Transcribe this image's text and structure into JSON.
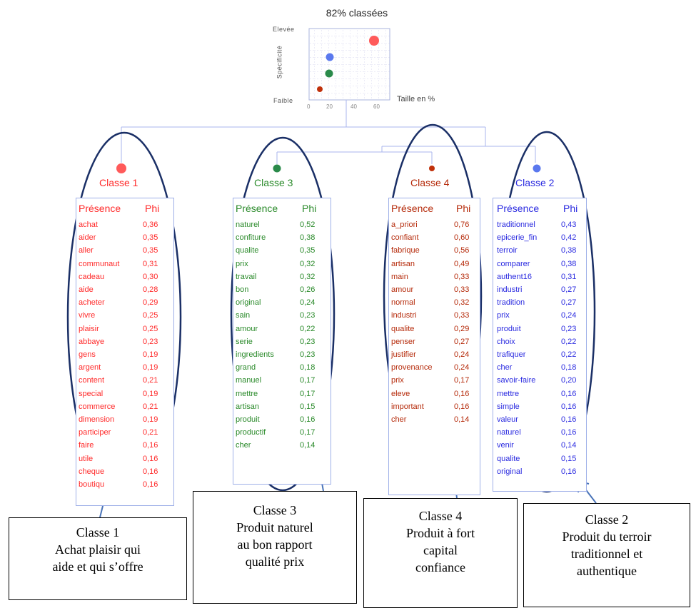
{
  "chart": {
    "title": "82% classées",
    "y_high": "Elevée",
    "y_low": "Faible",
    "y_axis": "Spécificité",
    "x_axis": "Taille en %",
    "x_ticks": [
      "0",
      "20",
      "40",
      "60"
    ]
  },
  "header": {
    "presence": "Présence",
    "phi": "Phi"
  },
  "classes": [
    {
      "title": "Classe 1",
      "color": "#ff2a2a",
      "rows": [
        [
          "achat",
          "0,36"
        ],
        [
          "aider",
          "0,35"
        ],
        [
          "aller",
          "0,35"
        ],
        [
          "communaut",
          "0,31"
        ],
        [
          "cadeau",
          "0,30"
        ],
        [
          "aide",
          "0,28"
        ],
        [
          "acheter",
          "0,29"
        ],
        [
          "vivre",
          "0,25"
        ],
        [
          "plaisir",
          "0,25"
        ],
        [
          "abbaye",
          "0,23"
        ],
        [
          "gens",
          "0,19"
        ],
        [
          "argent",
          "0,19"
        ],
        [
          "content",
          "0,21"
        ],
        [
          "special",
          "0,19"
        ],
        [
          "commerce",
          "0,21"
        ],
        [
          "dimension",
          "0,19"
        ],
        [
          "participer",
          "0,21"
        ],
        [
          "faire",
          "0,16"
        ],
        [
          "utile",
          "0,16"
        ],
        [
          "cheque",
          "0,16"
        ],
        [
          "boutiqu",
          "0,16"
        ]
      ],
      "desc": [
        "Classe 1",
        "Achat plaisir qui",
        "aide et qui s’offre"
      ]
    },
    {
      "title": "Classe 3",
      "color": "#2a8a2a",
      "rows": [
        [
          "naturel",
          "0,52"
        ],
        [
          "confiture",
          "0,38"
        ],
        [
          "qualite",
          "0,35"
        ],
        [
          "prix",
          "0,32"
        ],
        [
          "travail",
          "0,32"
        ],
        [
          "bon",
          "0,26"
        ],
        [
          "original",
          "0,24"
        ],
        [
          "sain",
          "0,23"
        ],
        [
          "amour",
          "0,22"
        ],
        [
          "serie",
          "0,23"
        ],
        [
          "ingredients",
          "0,23"
        ],
        [
          "grand",
          "0,18"
        ],
        [
          "manuel",
          "0,17"
        ],
        [
          "mettre",
          "0,17"
        ],
        [
          "artisan",
          "0,15"
        ],
        [
          "produit",
          "0,16"
        ],
        [
          "productif",
          "0,17"
        ],
        [
          "cher",
          "0,14"
        ]
      ],
      "desc": [
        "Classe 3",
        "Produit naturel",
        "au bon rapport",
        "qualité prix"
      ]
    },
    {
      "title": "Classe 4",
      "color": "#b52a0a",
      "rows": [
        [
          "a_priori",
          "0,76"
        ],
        [
          "confiant",
          "0,60"
        ],
        [
          "fabrique",
          "0,56"
        ],
        [
          "artisan",
          "0,49"
        ],
        [
          "main",
          "0,33"
        ],
        [
          "amour",
          "0,33"
        ],
        [
          "normal",
          "0,32"
        ],
        [
          "industri",
          "0,33"
        ],
        [
          "qualite",
          "0,29"
        ],
        [
          "penser",
          "0,27"
        ],
        [
          "justifier",
          "0,24"
        ],
        [
          "provenance",
          "0,24"
        ],
        [
          "prix",
          "0,17"
        ],
        [
          "eleve",
          "0,16"
        ],
        [
          "important",
          "0,16"
        ],
        [
          "cher",
          "0,14"
        ]
      ],
      "desc": [
        "Classe 4",
        "Produit à fort",
        "capital",
        "confiance"
      ]
    },
    {
      "title": "Classe 2",
      "color": "#2a2ae0",
      "rows": [
        [
          "traditionnel",
          "0,43"
        ],
        [
          "epicerie_fin",
          "0,42"
        ],
        [
          "terroir",
          "0,38"
        ],
        [
          "comparer",
          "0,38"
        ],
        [
          "authent16",
          "0,31"
        ],
        [
          "industri",
          "0,27"
        ],
        [
          "tradition",
          "0,27"
        ],
        [
          "prix",
          "0,24"
        ],
        [
          "produit",
          "0,23"
        ],
        [
          "choix",
          "0,22"
        ],
        [
          "trafiquer",
          "0,22"
        ],
        [
          "cher",
          "0,18"
        ],
        [
          "savoir-faire",
          "0,20"
        ],
        [
          "mettre",
          "0,16"
        ],
        [
          "simple",
          "0,16"
        ],
        [
          "valeur",
          "0,16"
        ],
        [
          "naturel",
          "0,16"
        ],
        [
          "venir",
          "0,14"
        ],
        [
          "qualite",
          "0,15"
        ],
        [
          "original",
          "0,16"
        ]
      ],
      "desc": [
        "Classe 2",
        "Produit du terroir",
        "traditionnel et",
        "authentique"
      ]
    }
  ]
}
